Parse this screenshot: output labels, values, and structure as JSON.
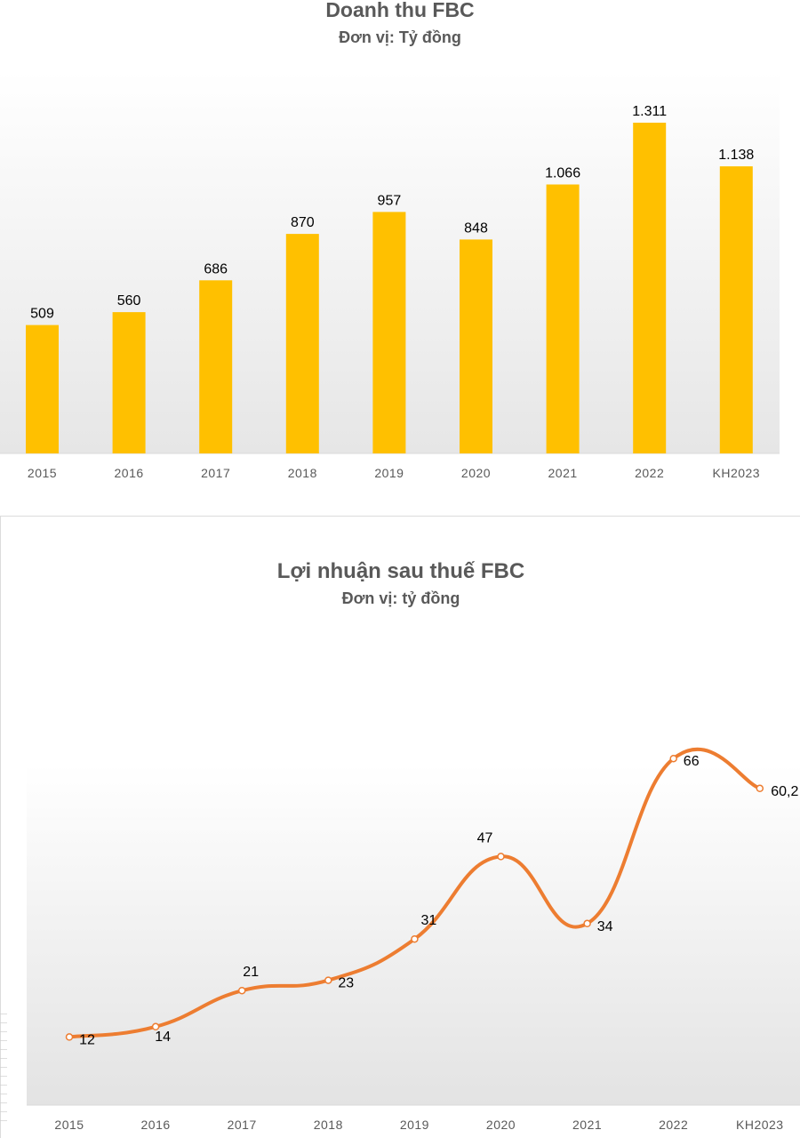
{
  "chart_data": [
    {
      "type": "bar",
      "title": "Doanh thu FBC",
      "subtitle": "Đơn vị: Tỷ đồng",
      "categories": [
        "2015",
        "2016",
        "2017",
        "2018",
        "2019",
        "2020",
        "2021",
        "2022",
        "KH2023"
      ],
      "values": [
        509,
        560,
        686,
        870,
        957,
        848,
        1066,
        1311,
        1138
      ],
      "data_labels": [
        "509",
        "560",
        "686",
        "870",
        "957",
        "848",
        "1.066",
        "1.311",
        "1.138"
      ],
      "ylim": [
        0,
        1311
      ],
      "color": "#FFC000",
      "grid": false,
      "legend": "none"
    },
    {
      "type": "line",
      "title": "Lợi nhuận sau thuế FBC",
      "subtitle": "Đơn vị: tỷ đồng",
      "categories": [
        "2015",
        "2016",
        "2017",
        "2018",
        "2019",
        "2020",
        "2021",
        "2022",
        "KH2023"
      ],
      "values": [
        12,
        14,
        21,
        23,
        31,
        47,
        34,
        66,
        60.2
      ],
      "data_labels": [
        "12",
        "14",
        "21",
        "23",
        "31",
        "47",
        "34",
        "66",
        "60,2"
      ],
      "ylim": [
        0,
        66
      ],
      "smooth": true,
      "color": "#ED7D31",
      "grid": false,
      "legend": "none"
    }
  ]
}
